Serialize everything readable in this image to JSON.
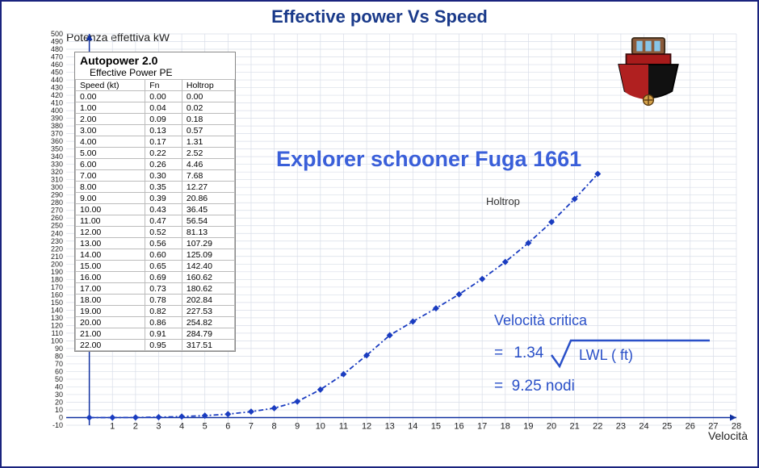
{
  "chart": {
    "title": "Effective power Vs Speed",
    "ylabel": "Potenza effettiva  kW",
    "xlabel": "Velocità",
    "x": {
      "min": -1,
      "max": 28,
      "tick_step": 1,
      "label_min": 1,
      "label_max": 28
    },
    "y": {
      "min": -10,
      "max": 500,
      "tick_step": 10,
      "label_min": -10,
      "label_max": 500
    },
    "grid_color": "#d8dde8",
    "axis_color": "#1030a0",
    "background": "#ffffff",
    "series": {
      "name": "Holtrop",
      "color": "#1a3cc0",
      "dash": "6 3 2 3",
      "marker": "diamond",
      "marker_size": 8,
      "x": [
        0,
        1,
        2,
        3,
        4,
        5,
        6,
        7,
        8,
        9,
        10,
        11,
        12,
        13,
        14,
        15,
        16,
        17,
        18,
        19,
        20,
        21,
        22
      ],
      "y": [
        0.0,
        0.02,
        0.18,
        0.57,
        1.31,
        2.52,
        4.46,
        7.68,
        12.27,
        20.86,
        36.45,
        56.54,
        81.13,
        107.29,
        125.09,
        142.4,
        160.62,
        180.62,
        202.84,
        227.53,
        254.82,
        284.79,
        317.51
      ]
    }
  },
  "schooner": "Explorer schooner Fuga 1661",
  "vcrit": {
    "title": "Velocità critica",
    "coef": "1.34",
    "inside": "LWL ( ft)",
    "result": "9.25 nodi"
  },
  "table": {
    "autopower_title": "Autopower 2.0",
    "subtitle": "Effective Power PE",
    "columns": [
      "Speed (kt)",
      "Fn",
      "Holtrop"
    ],
    "rows": [
      [
        "0.00",
        "0.00",
        "0.00"
      ],
      [
        "1.00",
        "0.04",
        "0.02"
      ],
      [
        "2.00",
        "0.09",
        "0.18"
      ],
      [
        "3.00",
        "0.13",
        "0.57"
      ],
      [
        "4.00",
        "0.17",
        "1.31"
      ],
      [
        "5.00",
        "0.22",
        "2.52"
      ],
      [
        "6.00",
        "0.26",
        "4.46"
      ],
      [
        "7.00",
        "0.30",
        "7.68"
      ],
      [
        "8.00",
        "0.35",
        "12.27"
      ],
      [
        "9.00",
        "0.39",
        "20.86"
      ],
      [
        "10.00",
        "0.43",
        "36.45"
      ],
      [
        "11.00",
        "0.47",
        "56.54"
      ],
      [
        "12.00",
        "0.52",
        "81.13"
      ],
      [
        "13.00",
        "0.56",
        "107.29"
      ],
      [
        "14.00",
        "0.60",
        "125.09"
      ],
      [
        "15.00",
        "0.65",
        "142.40"
      ],
      [
        "16.00",
        "0.69",
        "160.62"
      ],
      [
        "17.00",
        "0.73",
        "180.62"
      ],
      [
        "18.00",
        "0.78",
        "202.84"
      ],
      [
        "19.00",
        "0.82",
        "227.53"
      ],
      [
        "20.00",
        "0.86",
        "254.82"
      ],
      [
        "21.00",
        "0.91",
        "284.79"
      ],
      [
        "22.00",
        "0.95",
        "317.51"
      ]
    ]
  }
}
